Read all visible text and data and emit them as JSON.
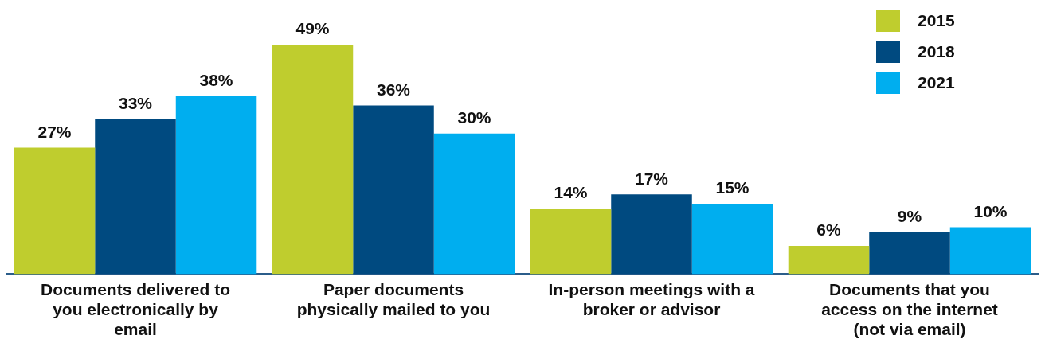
{
  "chart_data": {
    "type": "bar",
    "categories": [
      "Documents delivered to you electronically by email",
      "Paper documents physically mailed to you",
      "In-person meetings with a broker or advisor",
      "Documents that you access on the internet (not via email)"
    ],
    "series": [
      {
        "name": "2015",
        "color": "#bfcd2e",
        "values": [
          27,
          49,
          14,
          6
        ],
        "value_labels": [
          "27%",
          "49%",
          "14%",
          "6%"
        ]
      },
      {
        "name": "2018",
        "color": "#004a80",
        "values": [
          33,
          36,
          17,
          9
        ],
        "value_labels": [
          "33%",
          "36%",
          "17%",
          "9%"
        ]
      },
      {
        "name": "2021",
        "color": "#00aeef",
        "values": [
          38,
          30,
          15,
          10
        ],
        "value_labels": [
          "38%",
          "30%",
          "15%",
          "10%"
        ]
      }
    ],
    "legend": "top right",
    "grid": false
  }
}
